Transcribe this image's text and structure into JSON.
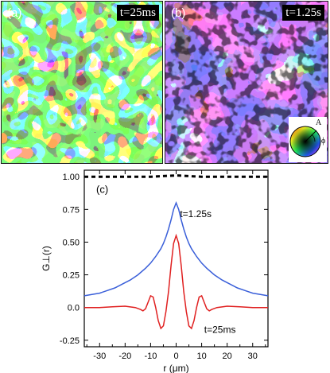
{
  "panel_a": {
    "label": "(a)",
    "time": "t=25ms"
  },
  "panel_b": {
    "label": "(b)",
    "time": "t=1.25s",
    "legend": {
      "amplitude_label": "A",
      "phase_label": "ϕ"
    }
  },
  "chart_data": {
    "type": "line",
    "panel_label": "(c)",
    "xlabel": "r (μm)",
    "ylabel": "G⊥(r)",
    "xlim": [
      -36,
      36
    ],
    "ylim": [
      -0.3,
      1.05
    ],
    "xticks": [
      -30,
      -20,
      -10,
      0,
      10,
      20,
      30
    ],
    "xtick_labels": [
      "-30",
      "-20",
      "-10",
      "0",
      "10",
      "20",
      "30"
    ],
    "yticks": [
      -0.25,
      0.0,
      0.25,
      0.5,
      0.75,
      1.0
    ],
    "ytick_labels": [
      "-0.25",
      "0.0",
      "0.25",
      "0.50",
      "0.75",
      "1.00"
    ],
    "series": [
      {
        "name": "t=1.25s",
        "color": "#3a5fd9",
        "x": [
          -36,
          -33,
          -30,
          -27,
          -24,
          -21,
          -18,
          -15,
          -12,
          -10,
          -8,
          -6,
          -5,
          -4,
          -3,
          -2,
          -1,
          0,
          1,
          2,
          3,
          4,
          5,
          6,
          8,
          10,
          12,
          15,
          18,
          21,
          24,
          27,
          30,
          33,
          36
        ],
        "y": [
          0.09,
          0.1,
          0.11,
          0.13,
          0.15,
          0.18,
          0.21,
          0.25,
          0.3,
          0.34,
          0.39,
          0.45,
          0.49,
          0.54,
          0.6,
          0.67,
          0.75,
          0.8,
          0.75,
          0.67,
          0.6,
          0.54,
          0.49,
          0.45,
          0.39,
          0.34,
          0.3,
          0.25,
          0.21,
          0.18,
          0.15,
          0.13,
          0.11,
          0.1,
          0.09
        ]
      },
      {
        "name": "t=25ms",
        "color": "#e02020",
        "x": [
          -36,
          -30,
          -25,
          -20,
          -16,
          -14,
          -13,
          -12,
          -11,
          -10,
          -9,
          -8,
          -7,
          -6,
          -5,
          -4,
          -3,
          -2,
          -1,
          0,
          1,
          2,
          3,
          4,
          5,
          6,
          7,
          8,
          9,
          10,
          11,
          12,
          13,
          14,
          16,
          20,
          25,
          30,
          36
        ],
        "y": [
          0.0,
          0.0,
          0.005,
          0.01,
          0.0,
          -0.015,
          -0.025,
          -0.01,
          0.04,
          0.09,
          0.08,
          0.0,
          -0.1,
          -0.16,
          -0.14,
          -0.03,
          0.12,
          0.32,
          0.49,
          0.55,
          0.49,
          0.32,
          0.12,
          -0.03,
          -0.14,
          -0.16,
          -0.1,
          0.0,
          0.08,
          0.09,
          0.04,
          -0.01,
          -0.025,
          -0.015,
          0.0,
          0.01,
          0.005,
          0.0,
          0.0
        ]
      },
      {
        "name": "",
        "color": "#000000",
        "dashed": true,
        "x": [
          -36,
          -30,
          -20,
          -10,
          0,
          10,
          20,
          30,
          36
        ],
        "y": [
          1.0,
          1.0,
          1.0,
          1.0,
          1.01,
          1.0,
          1.0,
          1.0,
          1.0
        ]
      }
    ],
    "annotations": [
      {
        "text": "t=1.25s",
        "x": 1.5,
        "y": 0.69
      },
      {
        "text": "t=25ms",
        "x": 11,
        "y": -0.195
      }
    ]
  }
}
